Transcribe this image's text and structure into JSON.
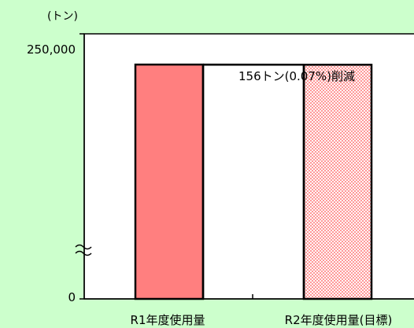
{
  "chart_data": {
    "type": "bar",
    "unit_label": "(トン)",
    "y_tick_labels": [
      "250,000",
      "0"
    ],
    "ylim": [
      0,
      250000
    ],
    "axis_break": true,
    "categories": [
      "R1年度使用量",
      "R2年度使用量(目標)"
    ],
    "values": [
      221000,
      220844
    ],
    "annotation": "156トン(0.07%)削減",
    "grid": false,
    "legend": "none",
    "colors": {
      "background": "#ccffcc",
      "plot_area": "#ffffff",
      "bar_r1": "#ff7f7f",
      "bar_r2_pattern": "#ff9999"
    }
  }
}
